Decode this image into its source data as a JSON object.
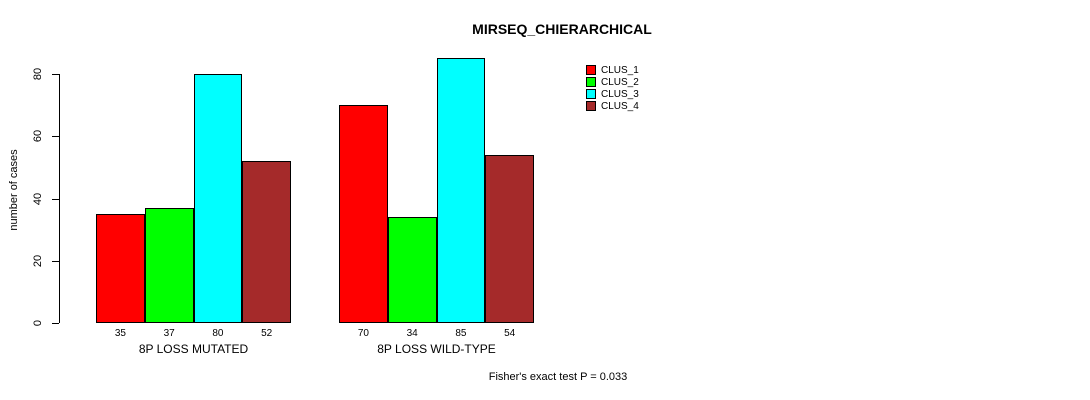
{
  "title": "MIRSEQ_CHIERARCHICAL",
  "ylabel": "number of cases",
  "footer": "Fisher's exact test P = 0.033",
  "chart_data": {
    "type": "bar",
    "categories": [
      "8P LOSS MUTATED",
      "8P LOSS WILD-TYPE"
    ],
    "series": [
      {
        "name": "CLUS_1",
        "color": "#ff0000",
        "values": [
          35,
          70
        ]
      },
      {
        "name": "CLUS_2",
        "color": "#00ff00",
        "values": [
          37,
          34
        ]
      },
      {
        "name": "CLUS_3",
        "color": "#00ffff",
        "values": [
          80,
          85
        ]
      },
      {
        "name": "CLUS_4",
        "color": "#a52a2a",
        "values": [
          52,
          54
        ]
      }
    ],
    "yticks": [
      0,
      20,
      40,
      60,
      80
    ],
    "ylim": [
      0,
      80
    ],
    "bar_value_labels_shown": true,
    "legend_position": "top-right",
    "grid": false
  }
}
